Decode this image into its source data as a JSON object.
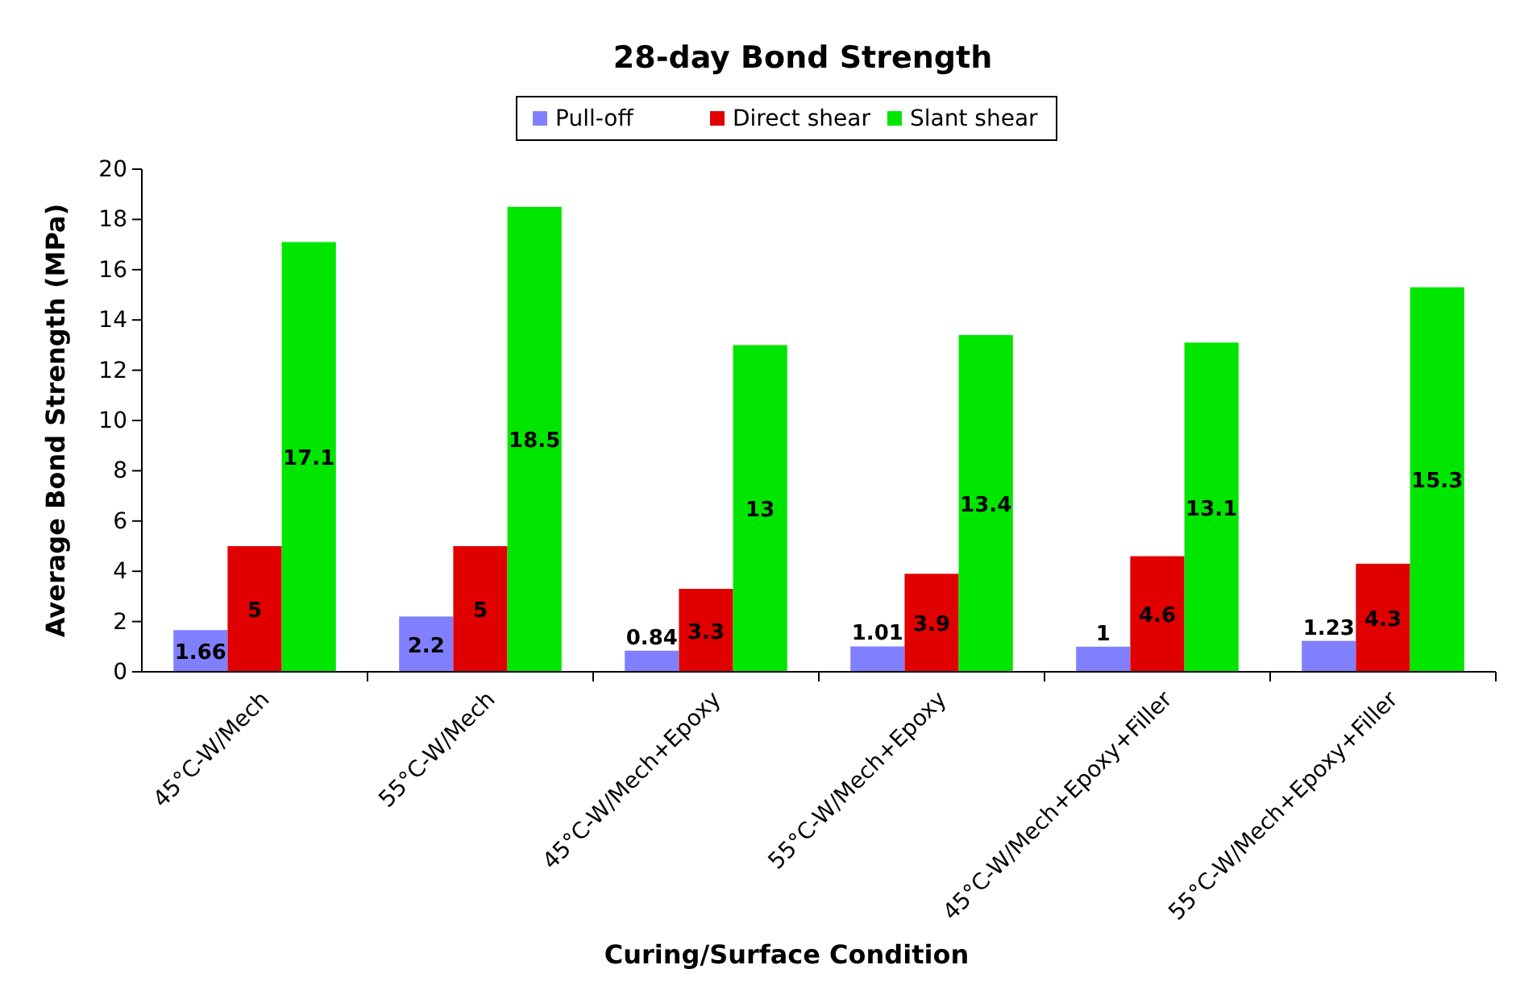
{
  "chart_data": {
    "type": "bar",
    "title": "28-day Bond Strength",
    "xlabel": "Curing/Surface Condition",
    "ylabel": "Average Bond Strength (MPa)",
    "categories": [
      "45°C-W/Mech",
      "55°C-W/Mech",
      "45°C-W/Mech+Epoxy",
      "55°C-W/Mech+Epoxy",
      "45°C-W/Mech+Epoxy+Filler",
      "55°C-W/Mech+Epoxy+Filler"
    ],
    "series": [
      {
        "name": "Pull-off",
        "color": "#8080ff",
        "values": [
          1.66,
          2.2,
          0.84,
          1.01,
          1,
          1.23
        ]
      },
      {
        "name": "Direct shear",
        "color": "#e00000",
        "values": [
          5,
          5,
          3.3,
          3.9,
          4.6,
          4.3
        ]
      },
      {
        "name": "Slant shear",
        "color": "#00e600",
        "values": [
          17.1,
          18.5,
          13,
          13.4,
          13.1,
          15.3
        ]
      }
    ],
    "ylim": [
      0,
      20
    ],
    "yticks": [
      0,
      2,
      4,
      6,
      8,
      10,
      12,
      14,
      16,
      18,
      20
    ],
    "data_labels": true,
    "legend": "top",
    "grid": false
  }
}
